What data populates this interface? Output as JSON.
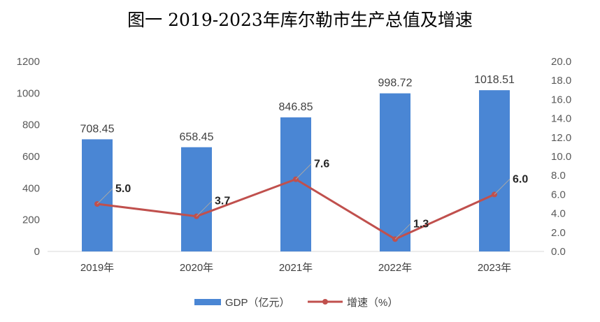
{
  "chart_data": {
    "type": "bar",
    "title": "图一  2019-2023年库尔勒市生产总值及增速",
    "categories": [
      "2019年",
      "2020年",
      "2021年",
      "2022年",
      "2023年"
    ],
    "series": [
      {
        "name": "GDP（亿元）",
        "type": "bar",
        "axis": "left",
        "color": "#4a86d4",
        "values": [
          708.45,
          658.45,
          846.85,
          998.72,
          1018.51
        ],
        "labels": [
          "708.45",
          "658.45",
          "846.85",
          "998.72",
          "1018.51"
        ]
      },
      {
        "name": "增速（%）",
        "type": "line",
        "axis": "right",
        "color": "#c0504d",
        "values": [
          5.0,
          3.7,
          7.6,
          1.3,
          6.0
        ],
        "labels": [
          "5.0",
          "3.7",
          "7.6",
          "1.3",
          "6.0"
        ]
      }
    ],
    "y_left": {
      "ylim": [
        0,
        1200
      ],
      "ticks": [
        "0",
        "200",
        "400",
        "600",
        "800",
        "1000",
        "1200"
      ]
    },
    "y_right": {
      "ylim": [
        0,
        20
      ],
      "ticks": [
        "0.0",
        "2.0",
        "4.0",
        "6.0",
        "8.0",
        "10.0",
        "12.0",
        "14.0",
        "16.0",
        "18.0",
        "20.0"
      ]
    },
    "grid": false,
    "legend": "bottom"
  }
}
